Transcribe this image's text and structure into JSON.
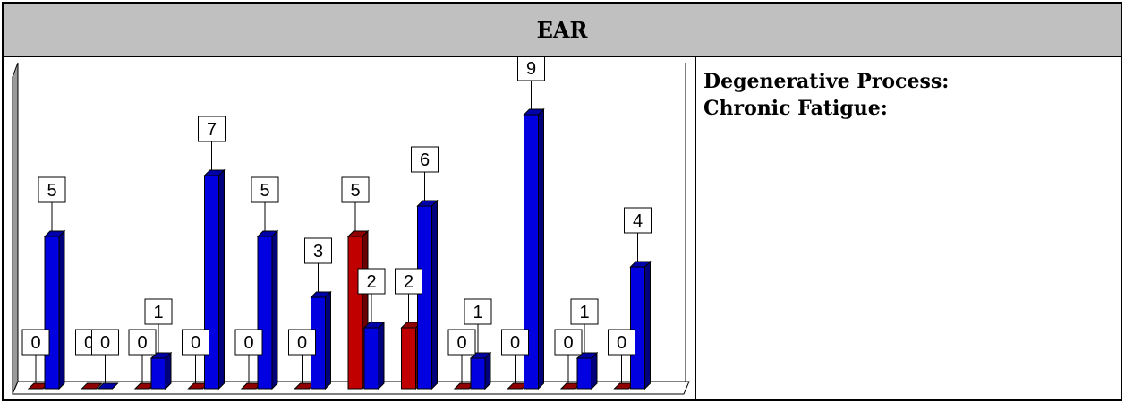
{
  "header": {
    "title": "EAR"
  },
  "info": {
    "lines": [
      "Degenerative Process:",
      "Chronic Fatigue:"
    ]
  },
  "colors": {
    "blue": "#1010e0",
    "red": "#ff1010",
    "header_bg": "#c0c0c0"
  },
  "chart_data": {
    "type": "bar",
    "style": "3d-clustered-bars-with-callout-labels",
    "categories": [
      "",
      "",
      "",
      "",
      "",
      "",
      "",
      "",
      "",
      "",
      "",
      ""
    ],
    "series": [
      {
        "color": "#c00000",
        "values": [
          0,
          0,
          0,
          0,
          0,
          0,
          5,
          2,
          0,
          0,
          0,
          0
        ]
      },
      {
        "color": "#0000e0",
        "values": [
          5,
          0,
          1,
          7,
          5,
          3,
          2,
          6,
          1,
          9,
          1,
          4
        ]
      }
    ],
    "ylim": [
      0,
      10
    ],
    "grid": false,
    "legend": "none",
    "title": "",
    "xlabel": "",
    "ylabel": ""
  }
}
